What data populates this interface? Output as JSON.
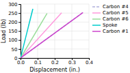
{
  "chart_data": {
    "type": "line",
    "xlabel": "Displacement (in.)",
    "ylabel": "Load (lb)",
    "xlim": [
      0,
      0.4
    ],
    "ylim": [
      0,
      300
    ],
    "xticks": [
      {
        "value": 0,
        "label": "0.0"
      },
      0.1,
      0.2,
      0.3,
      0.4
    ],
    "yticks": [
      0,
      50,
      100,
      150,
      200,
      250,
      300
    ],
    "grid": true,
    "legend": "upper right",
    "series": [
      {
        "name": "Carbon #4",
        "color": "#b0b0dd",
        "line_style": "dashed",
        "x": [
          0,
          0.365
        ],
        "values": [
          0,
          253.31
        ]
      },
      {
        "name": "Carbon #5",
        "color": "#ff99dd",
        "line_style": "solid",
        "x": [
          0,
          0.24
        ],
        "values": [
          0,
          252
        ]
      },
      {
        "name": "Carbon #6",
        "color": "#99dd99",
        "line_style": "solid",
        "x": [
          0,
          0.155
        ],
        "values": [
          0,
          248
        ]
      },
      {
        "name": "Spoke",
        "color": "#00cccc",
        "line_style": "solid",
        "x": [
          0,
          0.072
        ],
        "values": [
          0,
          273.6
        ]
      },
      {
        "name": "Carbon #1",
        "color": "#cc44cc",
        "line_style": "solid",
        "x": [
          0,
          0.365
        ],
        "values": [
          0,
          253.31
        ]
      }
    ]
  }
}
